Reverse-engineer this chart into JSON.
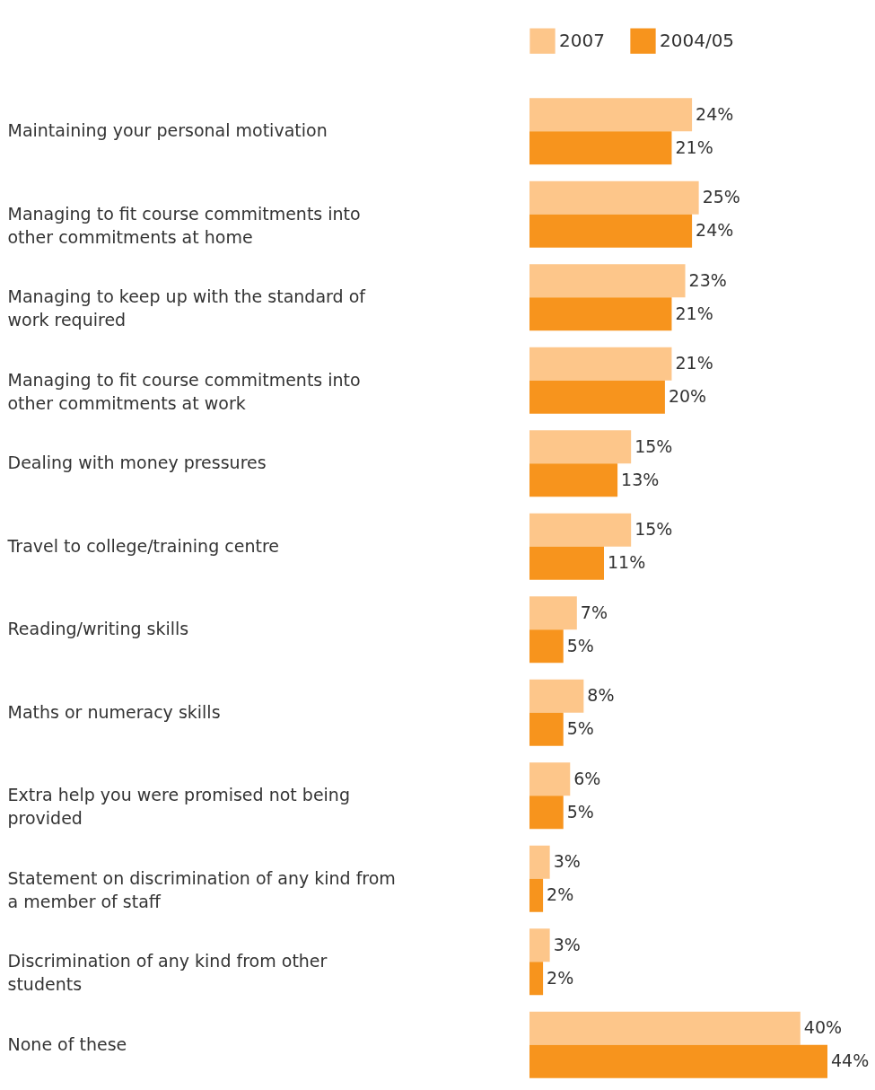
{
  "chart_data": {
    "type": "bar",
    "orientation": "horizontal",
    "legend": "top",
    "categories": [
      "Maintaining your personal motivation",
      "Managing to fit course commitments into other commitments at home",
      "Managing to keep up with the standard of work required",
      "Managing to fit course commitments into other commitments at work",
      "Dealing with money pressures",
      "Travel to college/training centre",
      "Reading/writing skills",
      "Maths or numeracy skills",
      "Extra help you were promised not being provided",
      "Statement on discrimination of any kind from a member of staff",
      "Discrimination of any kind from other students",
      "None of these"
    ],
    "series": [
      {
        "name": "2007",
        "color": "#fdc68a",
        "values": [
          24,
          25,
          23,
          21,
          15,
          15,
          7,
          8,
          6,
          3,
          3,
          40
        ],
        "value_labels": [
          "24%",
          "25%",
          "23%",
          "21%",
          "15%",
          "15%",
          "7%",
          "8%",
          "6%",
          "3%",
          "3%",
          "40%"
        ]
      },
      {
        "name": "2004/05",
        "color": "#f7941d",
        "values": [
          21,
          24,
          21,
          20,
          13,
          11,
          5,
          5,
          5,
          2,
          2,
          44
        ],
        "value_labels": [
          "21%",
          "24%",
          "21%",
          "20%",
          "13%",
          "11%",
          "5%",
          "5%",
          "5%",
          "2%",
          "2%",
          "44%"
        ]
      }
    ]
  }
}
